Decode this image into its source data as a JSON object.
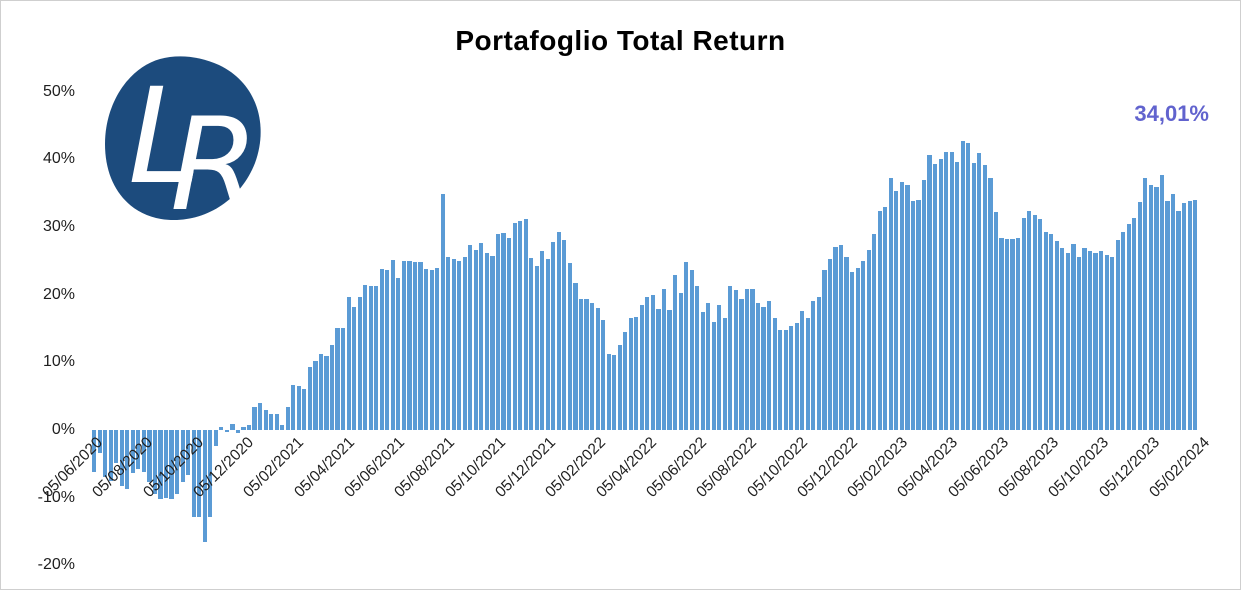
{
  "title": "Portafoglio Total Return",
  "annotation": {
    "final_return_label": "34,01%"
  },
  "logo": {
    "letter_l": "L",
    "letter_r": "R"
  },
  "colors": {
    "bar": "#5B9BD5",
    "logo_fill": "#1C4B7D",
    "logo_letters": "#FFFFFF",
    "annotation_text": "#6163CE",
    "axis_text": "#1F1F1F",
    "title_text": "#000000",
    "frame_border": "#CFCFCF",
    "background": "#FFFFFF"
  },
  "chart_data": {
    "type": "bar",
    "title": "Portafoglio Total Return",
    "unit": "percent",
    "frequency": "weekly",
    "grid": false,
    "legend": false,
    "ylim": [
      -20,
      50
    ],
    "y_ticks": [
      "50%",
      "40%",
      "30%",
      "20%",
      "10%",
      "0%",
      "-10%",
      "-20%"
    ],
    "y_tick_values": [
      50,
      40,
      30,
      20,
      10,
      0,
      -10,
      -20
    ],
    "x_tick_labels": [
      "05/06/2020",
      "05/08/2020",
      "05/10/2020",
      "05/12/2020",
      "05/02/2021",
      "05/04/2021",
      "05/06/2021",
      "05/08/2021",
      "05/10/2021",
      "05/12/2021",
      "05/02/2022",
      "05/04/2022",
      "05/06/2022",
      "05/08/2022",
      "05/10/2022",
      "05/12/2022",
      "05/02/2023",
      "05/04/2023",
      "05/06/2023",
      "05/08/2023",
      "05/10/2023",
      "05/12/2023",
      "05/02/2024"
    ],
    "values": [
      -6.2,
      -3.4,
      -7.0,
      -7.5,
      -4.9,
      -8.2,
      -8.7,
      -6.4,
      -5.7,
      -6.2,
      -7.7,
      -9.4,
      -10.2,
      -10.0,
      -10.2,
      -9.5,
      -7.7,
      -6.7,
      -12.9,
      -12.9,
      -16.6,
      -12.9,
      -2.3,
      0.5,
      -0.3,
      0.9,
      -0.4,
      0.5,
      0.8,
      3.4,
      4.0,
      3.0,
      2.3,
      2.3,
      0.7,
      3.4,
      6.6,
      6.5,
      6.1,
      9.3,
      10.2,
      11.2,
      10.9,
      12.6,
      15.1,
      15.1,
      19.7,
      18.2,
      19.6,
      21.4,
      21.3,
      21.3,
      23.8,
      23.7,
      25.1,
      22.4,
      24.9,
      25.0,
      24.8,
      24.8,
      23.8,
      23.7,
      24.0,
      34.9,
      25.5,
      25.3,
      25.0,
      25.6,
      27.3,
      26.6,
      27.6,
      26.1,
      25.7,
      28.9,
      29.1,
      28.3,
      30.6,
      30.8,
      31.1,
      25.4,
      24.2,
      26.5,
      25.3,
      27.8,
      29.3,
      28.0,
      24.6,
      21.7,
      19.4,
      19.4,
      18.7,
      18.0,
      16.2,
      11.3,
      11.1,
      12.5,
      14.5,
      16.5,
      16.7,
      18.5,
      19.6,
      20.0,
      17.8,
      20.9,
      17.7,
      22.9,
      20.2,
      24.8,
      23.7,
      21.2,
      17.5,
      18.7,
      16.0,
      18.5,
      16.6,
      21.3,
      20.7,
      19.4,
      20.9,
      20.9,
      18.7,
      18.2,
      19.0,
      16.5,
      14.8,
      14.8,
      15.3,
      15.8,
      17.6,
      16.6,
      19.1,
      19.7,
      23.7,
      25.2,
      27.0,
      27.4,
      25.5,
      23.3,
      24.0,
      24.9,
      26.6,
      29.0,
      32.4,
      33.0,
      37.2,
      35.3,
      36.7,
      36.2,
      33.9,
      34.0,
      37.0,
      40.6,
      39.3,
      40.1,
      41.1,
      41.0,
      39.6,
      42.7,
      42.4,
      39.5,
      40.9,
      39.2,
      37.2,
      32.2,
      28.3,
      28.2,
      28.2,
      28.3,
      31.3,
      32.4,
      31.7,
      31.1,
      29.3,
      28.9,
      27.9,
      26.9,
      26.1,
      27.5,
      25.5,
      26.9,
      26.4,
      26.1,
      26.5,
      25.9,
      25.5,
      28.1,
      29.3,
      30.4,
      31.3,
      33.7,
      37.2,
      36.2,
      35.9,
      37.6,
      33.8,
      34.8,
      32.4,
      33.5,
      33.9,
      34.01
    ],
    "final_value": 34.01
  }
}
